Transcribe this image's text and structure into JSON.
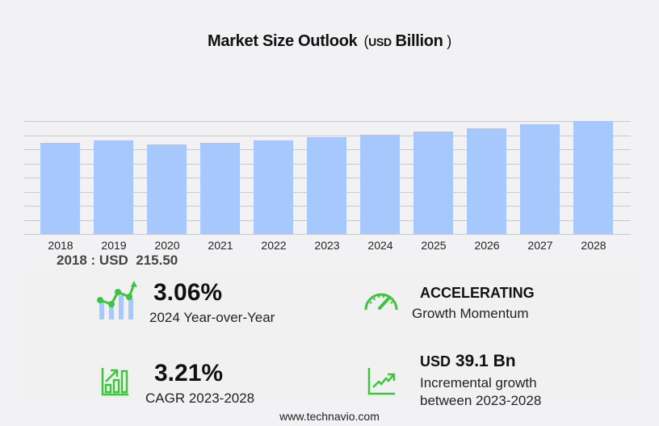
{
  "header": {
    "title": "Market Size Outlook",
    "unit_open": "(",
    "unit_currency": "USD",
    "unit_scale": "Billion",
    "unit_close": ")"
  },
  "base_year_label": "2018 : USD  215.50",
  "stats": {
    "yoy": {
      "value": "3.06%",
      "label": "2024 Year-over-Year",
      "icon": "trend-line-bars-icon"
    },
    "momentum": {
      "value": "ACCELERATING",
      "label": "Growth Momentum",
      "icon": "speedometer-icon"
    },
    "cagr": {
      "value": "3.21%",
      "label": "CAGR 2023-2028",
      "icon": "bar-chart-arrow-icon"
    },
    "incremental": {
      "value_prefix": "USD",
      "value": "39.1 Bn",
      "label_line1": "Incremental growth",
      "label_line2": "between 2023-2028",
      "icon": "line-chart-up-icon"
    }
  },
  "footer": {
    "source": "www.technavio.com"
  },
  "colors": {
    "bar": "#a7c8fd",
    "accent_green": "#3ec43e",
    "gridline": "#c9c9cc",
    "background": "#f2f2f4"
  },
  "chart_data": {
    "type": "bar",
    "title": "Market Size Outlook (USD Billion)",
    "xlabel": "",
    "ylabel": "USD Billion",
    "categories": [
      "2018",
      "2019",
      "2020",
      "2021",
      "2022",
      "2023",
      "2024",
      "2025",
      "2026",
      "2027",
      "2028"
    ],
    "values": [
      215.5,
      221.3,
      212.3,
      216.3,
      222.0,
      228.5,
      235.5,
      243.0,
      250.9,
      259.1,
      267.6
    ],
    "ylim": [
      0,
      267.6
    ],
    "grid": true,
    "y_tick_labels_visible": false,
    "legend": null,
    "annotations": [
      "2018 : USD 215.50",
      "3.06% 2024 Year-over-Year",
      "ACCELERATING Growth Momentum",
      "3.21% CAGR 2023-2028",
      "USD 39.1 Bn Incremental growth between 2023-2028"
    ]
  }
}
